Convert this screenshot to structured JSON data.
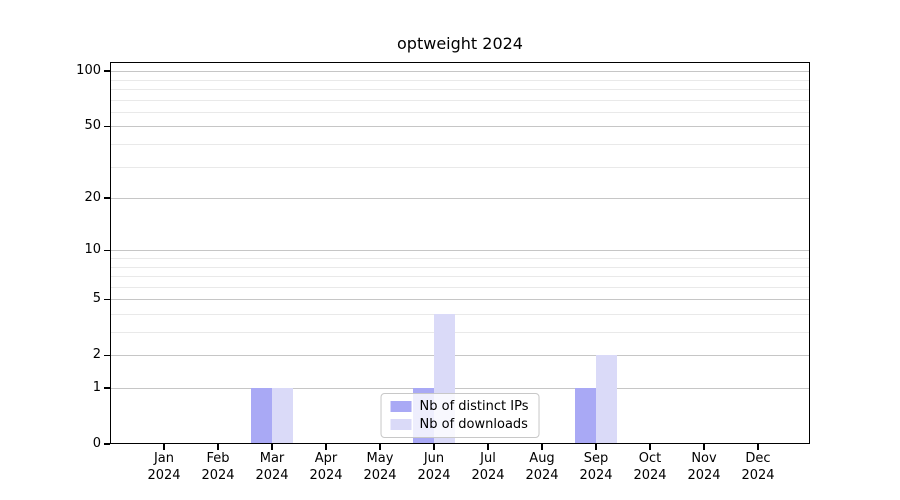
{
  "chart_data": {
    "type": "bar",
    "title": "optweight 2024",
    "months": [
      "Jan",
      "Feb",
      "Mar",
      "Apr",
      "May",
      "Jun",
      "Jul",
      "Aug",
      "Sep",
      "Oct",
      "Nov",
      "Dec"
    ],
    "year": "2024",
    "series": [
      {
        "name": "Nb of distinct IPs",
        "color": "#a9a9f5",
        "values": [
          0,
          0,
          1,
          0,
          0,
          1,
          0,
          0,
          1,
          0,
          0,
          0
        ]
      },
      {
        "name": "Nb of downloads",
        "color": "#dadaf8",
        "values": [
          0,
          0,
          1,
          0,
          0,
          4,
          0,
          0,
          2,
          0,
          0,
          0
        ]
      }
    ],
    "yticks": [
      0,
      1,
      2,
      5,
      10,
      20,
      50,
      100
    ],
    "minor_gridlines": [
      3,
      4,
      6,
      7,
      8,
      9,
      30,
      40,
      60,
      70,
      80,
      90
    ],
    "ymax": 112,
    "yscale": "log1p",
    "xlabel": "",
    "ylabel": "",
    "grid": true,
    "legend_position": "lower center"
  }
}
